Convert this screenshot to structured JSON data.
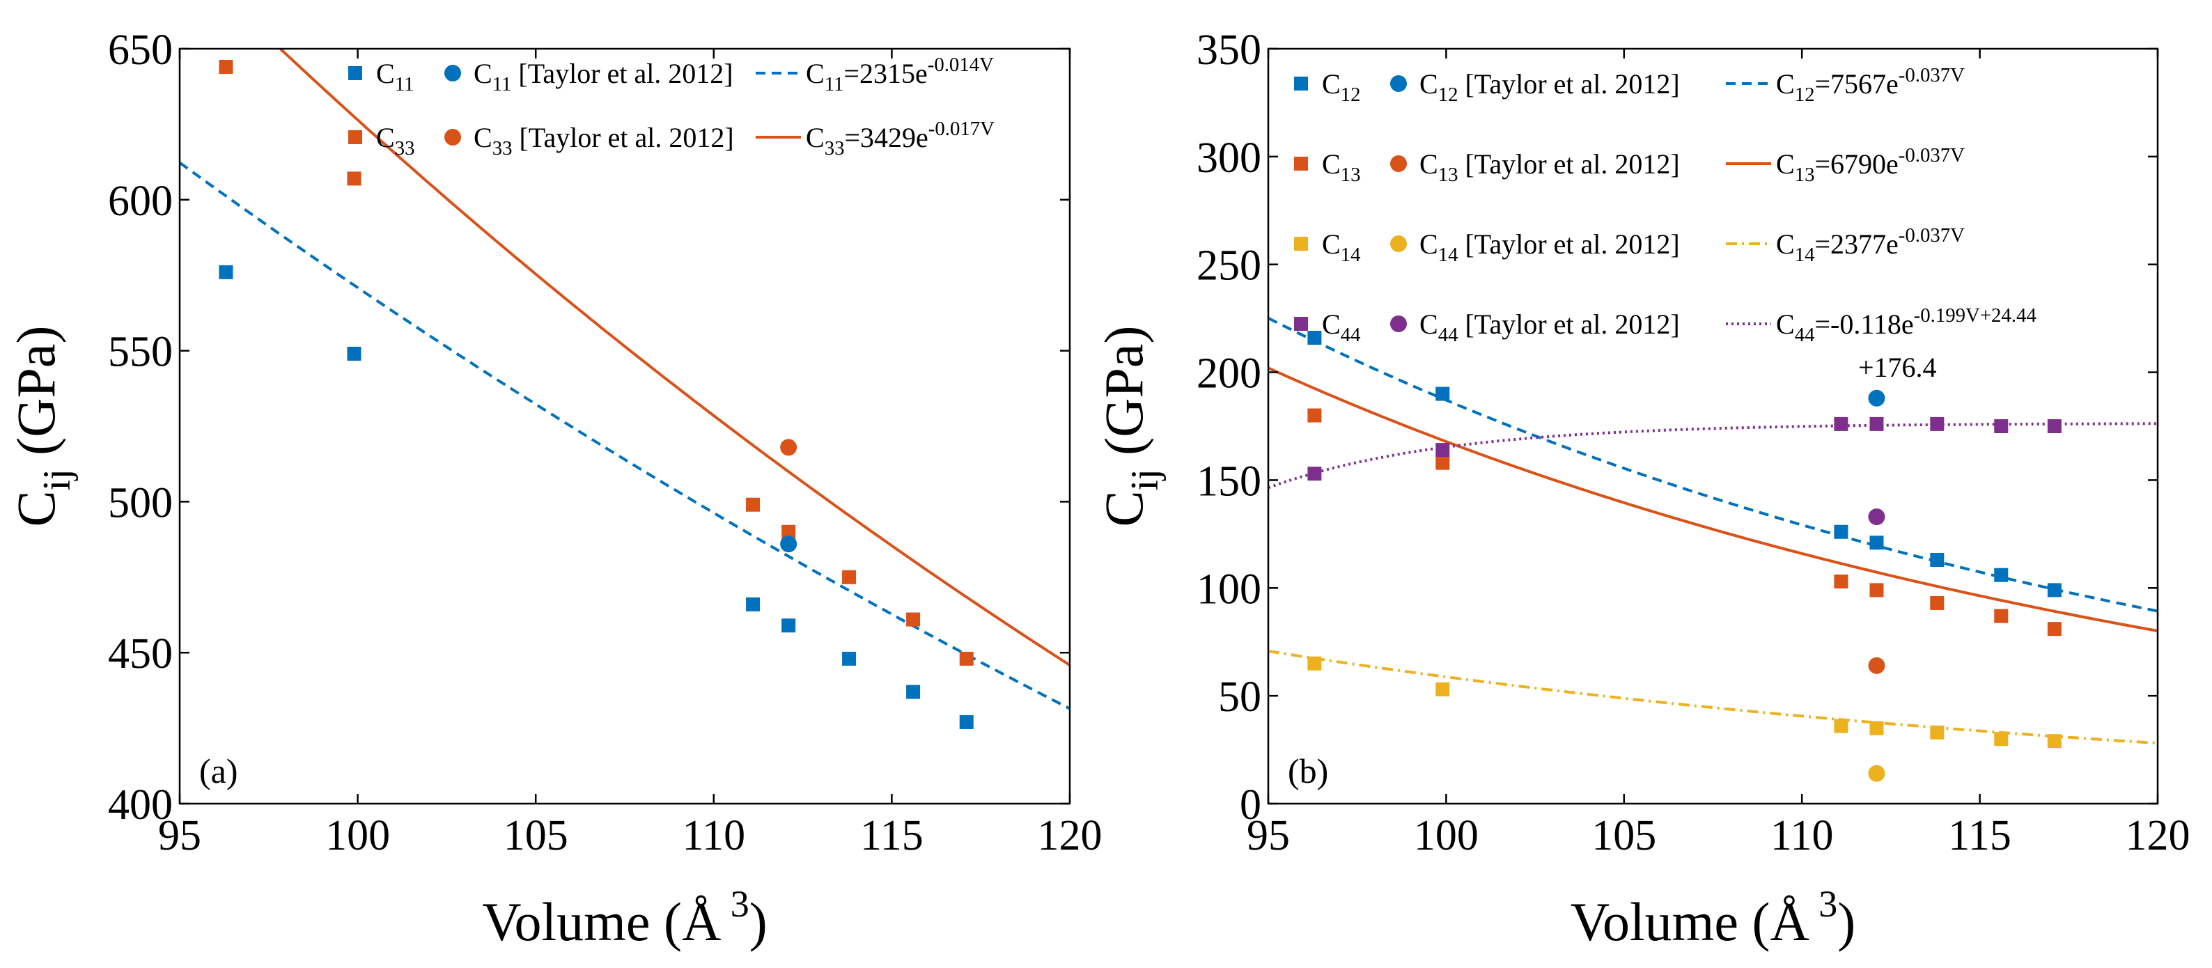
{
  "chart_data": [
    {
      "type": "scatter",
      "panel_label": "(a)",
      "xlabel": {
        "main": "Volume (Å",
        "sup": "3",
        "close": ")"
      },
      "ylabel": {
        "main": "C",
        "sub": "ij",
        "rest": " (GPa)"
      },
      "xlim": [
        95,
        120
      ],
      "ylim": [
        400,
        650
      ],
      "xticks": [
        95,
        100,
        105,
        110,
        115,
        120
      ],
      "yticks": [
        400,
        450,
        500,
        550,
        600,
        650
      ],
      "grid": false,
      "legend_placement": "top-right",
      "series": [
        {
          "name": "C11",
          "legend": {
            "main": "C",
            "sub": "11"
          },
          "color": "#0072BD",
          "marker": "square",
          "x": [
            96.3,
            99.9,
            111.1,
            112.1,
            113.8,
            115.6,
            117.1
          ],
          "y": [
            576,
            549,
            466,
            459,
            448,
            437,
            427
          ]
        },
        {
          "name": "C33",
          "legend": {
            "main": "C",
            "sub": "33"
          },
          "color": "#D95319",
          "marker": "square",
          "x": [
            96.3,
            99.9,
            111.1,
            112.1,
            113.8,
            115.6,
            117.1
          ],
          "y": [
            644,
            607,
            499,
            490,
            475,
            461,
            448
          ]
        },
        {
          "name": "C11 [Taylor et al. 2012]",
          "legend": {
            "main": "C",
            "sub": "11",
            "rest": " [Taylor et al. 2012]"
          },
          "color": "#0072BD",
          "marker": "circle",
          "x": [
            112.1
          ],
          "y": [
            486
          ]
        },
        {
          "name": "C33 [Taylor et al. 2012]",
          "legend": {
            "main": "C",
            "sub": "33",
            "rest": " [Taylor et al. 2012]"
          },
          "color": "#D95319",
          "marker": "circle",
          "x": [
            112.1
          ],
          "y": [
            518
          ]
        }
      ],
      "fits": [
        {
          "legend": {
            "main": "C",
            "sub": "11",
            "rest": "=2315e",
            "sup": "-0.014V"
          },
          "color": "#0072BD",
          "dash": "dashed",
          "a": 2315,
          "b": -0.014,
          "c": 0,
          "offset": 0
        },
        {
          "legend": {
            "main": "C",
            "sub": "33",
            "rest": "=3429e",
            "sup": "-0.017V"
          },
          "color": "#D95319",
          "dash": "solid",
          "a": 3429,
          "b": -0.017,
          "c": 0,
          "offset": 0
        }
      ]
    },
    {
      "type": "scatter",
      "panel_label": "(b)",
      "xlabel": {
        "main": "Volume (Å",
        "sup": "3",
        "close": ")"
      },
      "ylabel": {
        "main": "C",
        "sub": "ij",
        "rest": " (GPa)"
      },
      "xlim": [
        95,
        120
      ],
      "ylim": [
        0,
        350
      ],
      "xticks": [
        95,
        100,
        105,
        110,
        115,
        120
      ],
      "yticks": [
        0,
        50,
        100,
        150,
        200,
        250,
        300,
        350
      ],
      "grid": false,
      "legend_placement": "top-right",
      "series": [
        {
          "name": "C12",
          "legend": {
            "main": "C",
            "sub": "12"
          },
          "color": "#0072BD",
          "marker": "square",
          "x": [
            96.3,
            99.9,
            111.1,
            112.1,
            113.8,
            115.6,
            117.1
          ],
          "y": [
            216,
            190,
            126,
            121,
            113,
            106,
            99
          ]
        },
        {
          "name": "C13",
          "legend": {
            "main": "C",
            "sub": "13"
          },
          "color": "#D95319",
          "marker": "square",
          "x": [
            96.3,
            99.9,
            111.1,
            112.1,
            113.8,
            115.6,
            117.1
          ],
          "y": [
            180,
            158,
            103,
            99,
            93,
            87,
            81
          ]
        },
        {
          "name": "C14",
          "legend": {
            "main": "C",
            "sub": "14"
          },
          "color": "#EDB120",
          "marker": "square",
          "x": [
            96.3,
            99.9,
            111.1,
            112.1,
            113.8,
            115.6,
            117.1
          ],
          "y": [
            65,
            53,
            36,
            35,
            33,
            30,
            29
          ]
        },
        {
          "name": "C44",
          "legend": {
            "main": "C",
            "sub": "44"
          },
          "color": "#7E2F8E",
          "marker": "square",
          "x": [
            96.3,
            99.9,
            111.1,
            112.1,
            113.8,
            115.6,
            117.1
          ],
          "y": [
            153,
            164,
            176,
            176,
            176,
            175,
            175
          ]
        },
        {
          "name": "C12 [Taylor et al. 2012]",
          "legend": {
            "main": "C",
            "sub": "12",
            "rest": " [Taylor et al. 2012]"
          },
          "color": "#0072BD",
          "marker": "circle",
          "x": [
            112.1
          ],
          "y": [
            188
          ]
        },
        {
          "name": "C13 [Taylor et al. 2012]",
          "legend": {
            "main": "C",
            "sub": "13",
            "rest": " [Taylor et al. 2012]"
          },
          "color": "#D95319",
          "marker": "circle",
          "x": [
            112.1
          ],
          "y": [
            64
          ]
        },
        {
          "name": "C14 [Taylor et al. 2012]",
          "legend": {
            "main": "C",
            "sub": "14",
            "rest": " [Taylor et al. 2012]"
          },
          "color": "#EDB120",
          "marker": "circle",
          "x": [
            112.1
          ],
          "y": [
            14
          ]
        },
        {
          "name": "C44 [Taylor et al. 2012]",
          "legend": {
            "main": "C",
            "sub": "44",
            "rest": " [Taylor et al. 2012]"
          },
          "color": "#7E2F8E",
          "marker": "circle",
          "x": [
            112.1
          ],
          "y": [
            133
          ]
        }
      ],
      "fits": [
        {
          "legend": {
            "main": "C",
            "sub": "12",
            "rest": "=7567e",
            "sup": "-0.037V"
          },
          "color": "#0072BD",
          "dash": "dashed",
          "a": 7567,
          "b": -0.037,
          "c": 0,
          "offset": 0
        },
        {
          "legend": {
            "main": "C",
            "sub": "13",
            "rest": "=6790e",
            "sup": "-0.037V"
          },
          "color": "#D95319",
          "dash": "solid",
          "a": 6790,
          "b": -0.037,
          "c": 0,
          "offset": 0
        },
        {
          "legend": {
            "main": "C",
            "sub": "14",
            "rest": "=2377e",
            "sup": "-0.037V"
          },
          "color": "#EDB120",
          "dash": "dashdot",
          "a": 2377,
          "b": -0.037,
          "c": 0,
          "offset": 0
        },
        {
          "legend": {
            "main": "C",
            "sub": "44",
            "rest": "=-0.118e",
            "sup": "-0.199V+24.44",
            "line2": "+176.4"
          },
          "color": "#7E2F8E",
          "dash": "dotted",
          "a": -0.118,
          "b": -0.199,
          "c": 24.44,
          "offset": 176.4
        }
      ]
    }
  ]
}
